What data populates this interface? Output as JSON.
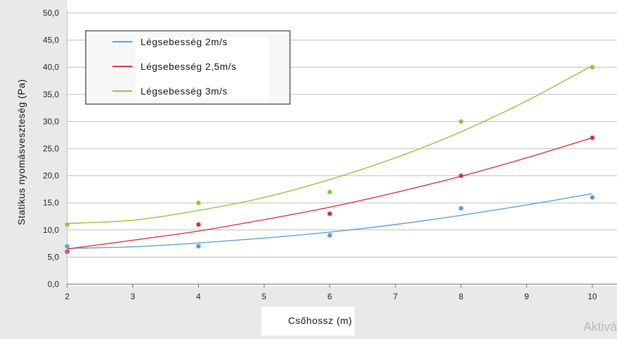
{
  "chart_data": {
    "type": "scatter",
    "xlabel": "Csőhossz (m)",
    "ylabel": "Statikus nyomásveszteség (Pa)",
    "xlim": [
      2,
      10
    ],
    "ylim": [
      0,
      50
    ],
    "x_ticks": [
      "2",
      "3",
      "4",
      "5",
      "6",
      "7",
      "8",
      "9",
      "10"
    ],
    "y_ticks": [
      "0,0",
      "5,0",
      "10,0",
      "15,0",
      "20,0",
      "25,0",
      "30,0",
      "35,0",
      "40,0",
      "45,0",
      "50,0"
    ],
    "grid": "horizontal",
    "legend_position": "top-left",
    "trendline": "polynomial",
    "series": [
      {
        "name": "Légsebesség 2m/s",
        "color": "#5a9fd4",
        "x": [
          2,
          4,
          6,
          8,
          10
        ],
        "y": [
          7,
          7,
          9,
          14,
          16
        ],
        "fit": [
          [
            2,
            6.6
          ],
          [
            3,
            6.9
          ],
          [
            4,
            7.6
          ],
          [
            5,
            8.5
          ],
          [
            6,
            9.6
          ],
          [
            7,
            11.0
          ],
          [
            8,
            12.7
          ],
          [
            9,
            14.6
          ],
          [
            10,
            16.7
          ]
        ]
      },
      {
        "name": "Légsebesség 2,5m/s",
        "color": "#d9333f",
        "x": [
          2,
          4,
          6,
          8,
          10
        ],
        "y": [
          6,
          11,
          13,
          20,
          27
        ],
        "fit": [
          [
            2,
            6.5
          ],
          [
            3,
            8.1
          ],
          [
            4,
            9.8
          ],
          [
            5,
            11.9
          ],
          [
            6,
            14.2
          ],
          [
            7,
            16.9
          ],
          [
            8,
            19.9
          ],
          [
            9,
            23.3
          ],
          [
            10,
            27.0
          ]
        ]
      },
      {
        "name": "Légsebesség 3m/s",
        "color": "#8cc63f",
        "x": [
          2,
          4,
          6,
          8,
          10
        ],
        "y": [
          11,
          15,
          17,
          30,
          40
        ],
        "fit": [
          [
            2,
            11.2
          ],
          [
            3,
            11.8
          ],
          [
            4,
            13.6
          ],
          [
            5,
            16.0
          ],
          [
            6,
            19.3
          ],
          [
            7,
            23.3
          ],
          [
            8,
            28.1
          ],
          [
            9,
            33.8
          ],
          [
            10,
            40.3
          ]
        ]
      }
    ]
  },
  "watermark": "Aktivá"
}
